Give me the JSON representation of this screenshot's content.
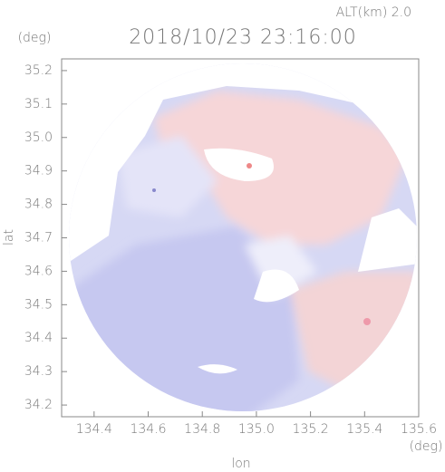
{
  "chart_data": {
    "type": "map",
    "title": "2018/10/23 23:16:00",
    "altitude_label": "ALT(km)  2.0",
    "xlabel": "lon",
    "ylabel": "lat",
    "x_unit": "(deg)",
    "y_unit": "(deg)",
    "xlim": [
      134.28,
      135.6
    ],
    "ylim": [
      34.165,
      35.235
    ],
    "xticks": [
      134.4,
      134.6,
      134.8,
      {
        "value": 135.0,
        "label": "135.0"
      },
      135.2,
      135.4,
      135.6
    ],
    "yticks": [
      34.2,
      34.3,
      34.4,
      34.5,
      34.6,
      34.7,
      34.8,
      34.9,
      {
        "value": 35.0,
        "label": "35.0"
      },
      35.1,
      35.2
    ]
  }
}
